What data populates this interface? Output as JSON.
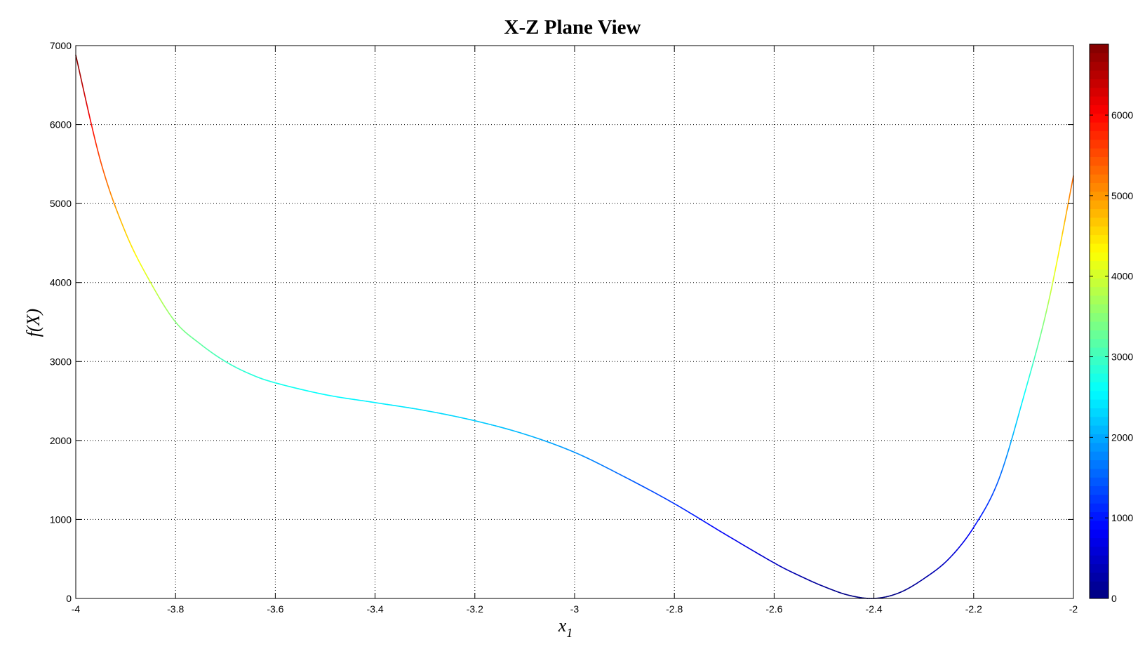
{
  "chart_data": {
    "type": "line",
    "title": "X-Z Plane View",
    "xlabel": "x",
    "xlabel_subscript": "1",
    "ylabel": "f(X)",
    "xlim": [
      -4,
      -2
    ],
    "ylim": [
      0,
      7000
    ],
    "grid": true,
    "grid_style": "dotted",
    "xticks": [
      -4,
      -3.8,
      -3.6,
      -3.4,
      -3.2,
      -3,
      -2.8,
      -2.6,
      -2.4,
      -2.2,
      -2
    ],
    "yticks": [
      0,
      1000,
      2000,
      3000,
      4000,
      5000,
      6000,
      7000
    ],
    "colormap": "jet",
    "colorbar": {
      "position": "right",
      "range": [
        0,
        6880
      ],
      "ticks": [
        0,
        1000,
        2000,
        3000,
        4000,
        5000,
        6000
      ]
    },
    "series": [
      {
        "color_by": "value",
        "x": [
          -4,
          -3.95,
          -3.9,
          -3.85,
          -3.8,
          -3.75,
          -3.7,
          -3.65,
          -3.6,
          -3.5,
          -3.4,
          -3.3,
          -3.2,
          -3.1,
          -3.0,
          -2.9,
          -2.8,
          -2.7,
          -2.6,
          -2.55,
          -2.5,
          -2.45,
          -2.4,
          -2.35,
          -2.3,
          -2.25,
          -2.2,
          -2.15,
          -2.1,
          -2.05,
          -2.0
        ],
        "y": [
          6880,
          5530,
          4630,
          4000,
          3500,
          3220,
          3000,
          2840,
          2730,
          2580,
          2480,
          2380,
          2250,
          2080,
          1850,
          1540,
          1200,
          820,
          450,
          290,
          150,
          40,
          0,
          70,
          250,
          500,
          900,
          1500,
          2550,
          3750,
          5350
        ]
      }
    ]
  }
}
